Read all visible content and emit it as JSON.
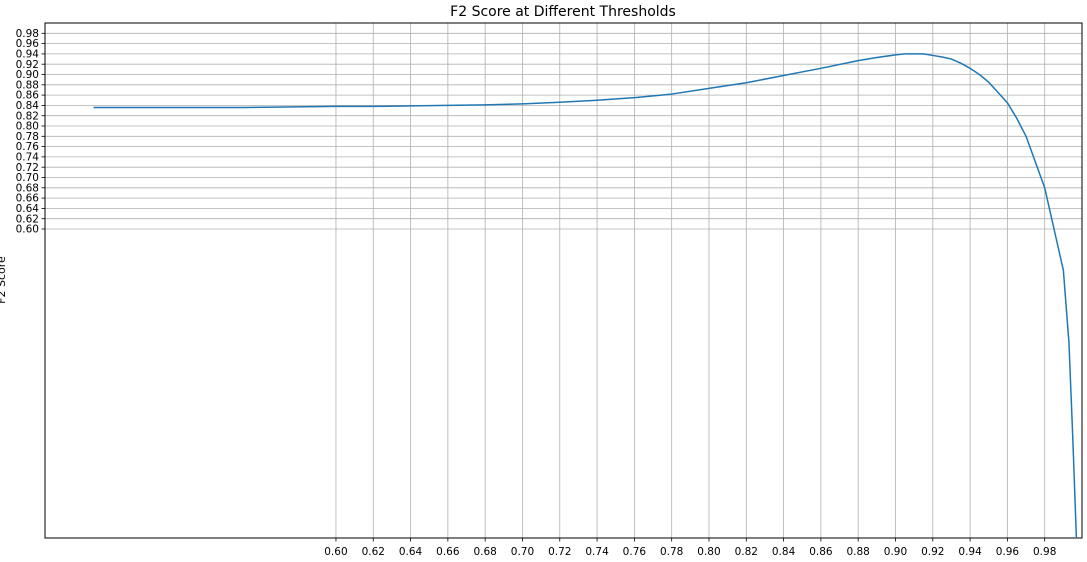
{
  "chart_data": {
    "type": "line",
    "title": "F2 Score at Different Thresholds",
    "xlabel": "",
    "ylabel": "F2 Score",
    "xlim": [
      0.444,
      1.0
    ],
    "ylim": [
      0.0,
      1.0
    ],
    "x_ticks": [
      "0.60",
      "0.62",
      "0.64",
      "0.66",
      "0.68",
      "0.70",
      "0.72",
      "0.74",
      "0.76",
      "0.78",
      "0.80",
      "0.82",
      "0.84",
      "0.86",
      "0.88",
      "0.90",
      "0.92",
      "0.94",
      "0.96",
      "0.98"
    ],
    "y_ticks": [
      "0.60",
      "0.62",
      "0.64",
      "0.66",
      "0.68",
      "0.70",
      "0.72",
      "0.74",
      "0.76",
      "0.78",
      "0.80",
      "0.82",
      "0.84",
      "0.86",
      "0.88",
      "0.90",
      "0.92",
      "0.94",
      "0.96",
      "0.98"
    ],
    "grid": true,
    "line_color": "#1f77b4",
    "series": [
      {
        "x": [
          0.47,
          0.5,
          0.55,
          0.6,
          0.62,
          0.64,
          0.66,
          0.68,
          0.7,
          0.72,
          0.74,
          0.76,
          0.78,
          0.8,
          0.82,
          0.84,
          0.86,
          0.88,
          0.89,
          0.9,
          0.905,
          0.91,
          0.915,
          0.92,
          0.925,
          0.93,
          0.935,
          0.94,
          0.945,
          0.95,
          0.955,
          0.96,
          0.965,
          0.97,
          0.975,
          0.98,
          0.985,
          0.99,
          0.993,
          0.995,
          0.997
        ],
        "y": [
          0.836,
          0.836,
          0.836,
          0.838,
          0.838,
          0.839,
          0.84,
          0.841,
          0.843,
          0.846,
          0.85,
          0.855,
          0.862,
          0.873,
          0.884,
          0.898,
          0.912,
          0.927,
          0.933,
          0.938,
          0.94,
          0.94,
          0.94,
          0.937,
          0.934,
          0.93,
          0.922,
          0.912,
          0.9,
          0.885,
          0.865,
          0.845,
          0.815,
          0.78,
          0.73,
          0.68,
          0.6,
          0.52,
          0.38,
          0.2,
          0.0
        ]
      }
    ]
  }
}
